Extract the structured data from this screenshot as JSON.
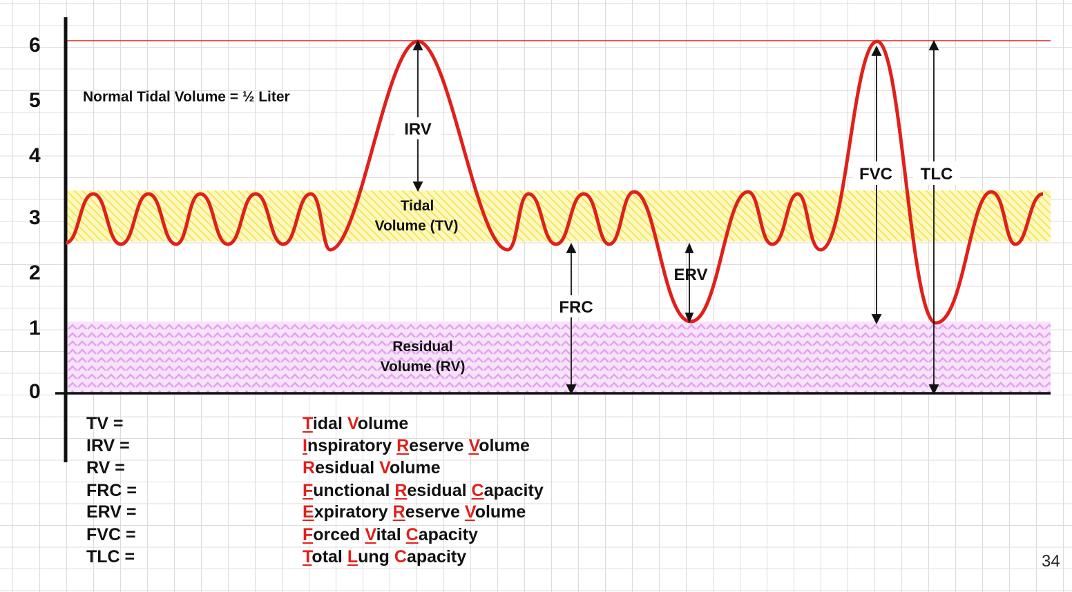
{
  "diagram": {
    "y_axis_ticks": [
      "6",
      "5",
      "4",
      "3",
      "2",
      "1",
      "0"
    ],
    "note": "Normal Tidal Volume = ½ Liter",
    "region_labels": {
      "tidal": [
        "Tidal",
        "Volume (TV)"
      ],
      "residual": [
        "Residual",
        "Volume (RV)"
      ]
    },
    "arrow_labels": {
      "irv": "IRV",
      "frc": "FRC",
      "erv": "ERV",
      "fvc": "FVC",
      "tlc": "TLC"
    },
    "colors": {
      "curve": "#e0201a",
      "tidal_band": "#f5ec3a",
      "residual_band": "#e6a6f0",
      "max_line": "#e0201a",
      "axis": "#111111"
    }
  },
  "legend": [
    {
      "abbr": "TV =",
      "words": [
        {
          "first": "T",
          "rest": "idal",
          "underline": true
        },
        {
          "first": "V",
          "rest": "olume",
          "underline": false
        }
      ]
    },
    {
      "abbr": "IRV =",
      "words": [
        {
          "first": "I",
          "rest": "nspiratory",
          "underline": true
        },
        {
          "first": "R",
          "rest": "eserve",
          "underline": true
        },
        {
          "first": "V",
          "rest": "olume",
          "underline": true
        }
      ]
    },
    {
      "abbr": "RV =",
      "words": [
        {
          "first": "R",
          "rest": "esidual",
          "underline": false
        },
        {
          "first": "V",
          "rest": "olume",
          "underline": false
        }
      ]
    },
    {
      "abbr": "FRC =",
      "words": [
        {
          "first": "F",
          "rest": "unctional",
          "underline": true
        },
        {
          "first": "R",
          "rest": "esidual",
          "underline": true
        },
        {
          "first": "C",
          "rest": "apacity",
          "underline": true
        }
      ]
    },
    {
      "abbr": "ERV =",
      "words": [
        {
          "first": "E",
          "rest": "xpiratory",
          "underline": true
        },
        {
          "first": "R",
          "rest": "eserve",
          "underline": true
        },
        {
          "first": "V",
          "rest": "olume",
          "underline": true
        }
      ]
    },
    {
      "abbr": "FVC =",
      "words": [
        {
          "first": "F",
          "rest": "orced",
          "underline": true
        },
        {
          "first": "V",
          "rest": "ital",
          "underline": true
        },
        {
          "first": "C",
          "rest": "apacity",
          "underline": true
        }
      ]
    },
    {
      "abbr": "TLC =",
      "words": [
        {
          "first": "T",
          "rest": "otal",
          "underline": true
        },
        {
          "first": "L",
          "rest": "ung",
          "underline": true
        },
        {
          "first": "C",
          "rest": "apacity",
          "underline": false
        }
      ]
    }
  ],
  "page_number": "34"
}
